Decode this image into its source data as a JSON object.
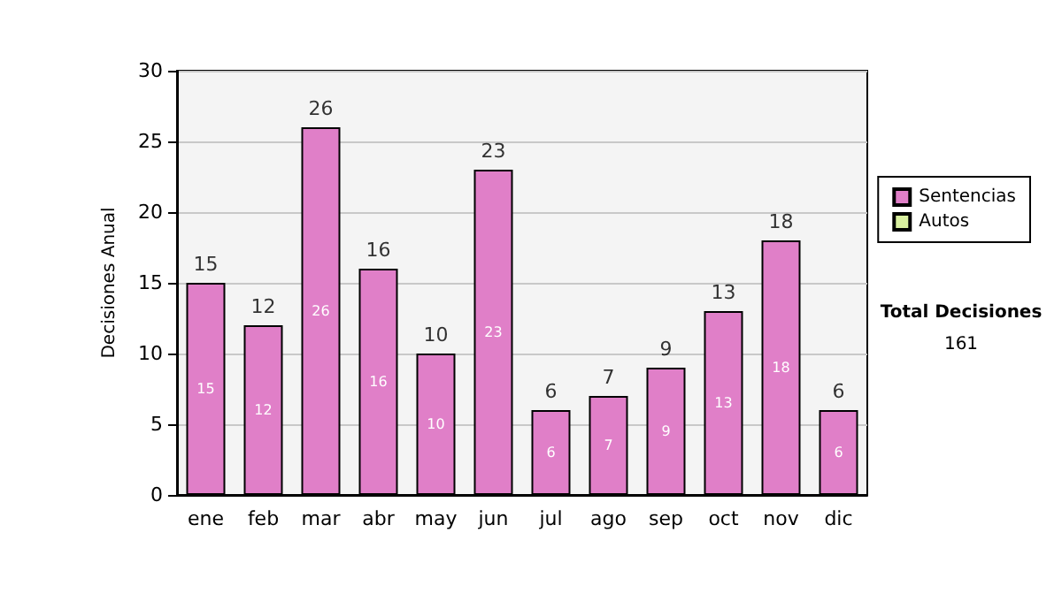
{
  "chart_data": {
    "type": "bar",
    "stacked": true,
    "ylabel": "Decisiones Anual",
    "categories": [
      "ene",
      "feb",
      "mar",
      "abr",
      "may",
      "jun",
      "jul",
      "ago",
      "sep",
      "oct",
      "nov",
      "dic"
    ],
    "series": [
      {
        "name": "Sentencias",
        "color": "#e07fc8",
        "values": [
          15,
          12,
          26,
          16,
          10,
          23,
          6,
          7,
          9,
          13,
          18,
          6
        ]
      },
      {
        "name": "Autos",
        "color": "#d9f0a0",
        "values": [
          null,
          null,
          null,
          null,
          null,
          null,
          null,
          null,
          null,
          null,
          null,
          null
        ]
      }
    ],
    "totals": [
      "15",
      "12",
      "26",
      "16",
      "10",
      "23",
      "6",
      "7",
      "9",
      "13",
      "18",
      "6"
    ],
    "data_labels": true,
    "ylim": [
      0,
      30
    ],
    "yticks": [
      0,
      5,
      10,
      15,
      20,
      25,
      30
    ],
    "grid": "y",
    "legend": "right",
    "annotations": [
      "Total Decisiones",
      "161"
    ]
  }
}
